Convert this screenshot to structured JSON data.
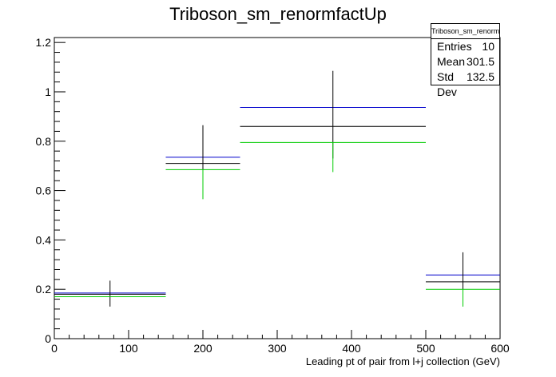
{
  "chart_data": {
    "type": "histogram",
    "title": "Triboson_sm_renormfactUp",
    "xlabel": "Leading pt of pair from l+j collection (GeV)",
    "ylabel": "",
    "xlim": [
      0,
      600
    ],
    "ylim": [
      0,
      1.22
    ],
    "xticks": [
      "0",
      "100",
      "200",
      "300",
      "400",
      "500",
      "600"
    ],
    "yticks": [
      "0",
      "0.2",
      "0.4",
      "0.6",
      "0.8",
      "1",
      "1.2"
    ],
    "grid": false,
    "bins": [
      {
        "xlow": 0,
        "xhigh": 150,
        "x": 75
      },
      {
        "xlow": 150,
        "xhigh": 250,
        "x": 200
      },
      {
        "xlow": 250,
        "xhigh": 500,
        "x": 375
      },
      {
        "xlow": 500,
        "xhigh": 600,
        "x": 550
      }
    ],
    "series": [
      {
        "color": "#0000cc",
        "values": [
          0.185,
          0.735,
          0.937,
          0.258
        ]
      },
      {
        "color": "#000000",
        "values": [
          0.18,
          0.71,
          0.86,
          0.23
        ],
        "errors": [
          [
            0.13,
            0.235
          ],
          [
            0.575,
            0.865
          ],
          [
            0.73,
            1.085
          ],
          [
            0.145,
            0.35
          ]
        ]
      },
      {
        "color": "#00cc00",
        "values": [
          0.17,
          0.685,
          0.795,
          0.2
        ],
        "errors": [
          [
            0.17,
            0.17
          ],
          [
            0.565,
            0.685
          ],
          [
            0.675,
            0.795
          ],
          [
            0.13,
            0.2
          ]
        ]
      }
    ]
  },
  "stats": {
    "title": "Triboson_sm_renormfactUp",
    "rows": [
      {
        "label": "Entries",
        "value": "10"
      },
      {
        "label": "Mean",
        "value": "301.5"
      },
      {
        "label": "Std Dev",
        "value": "132.5"
      }
    ]
  }
}
